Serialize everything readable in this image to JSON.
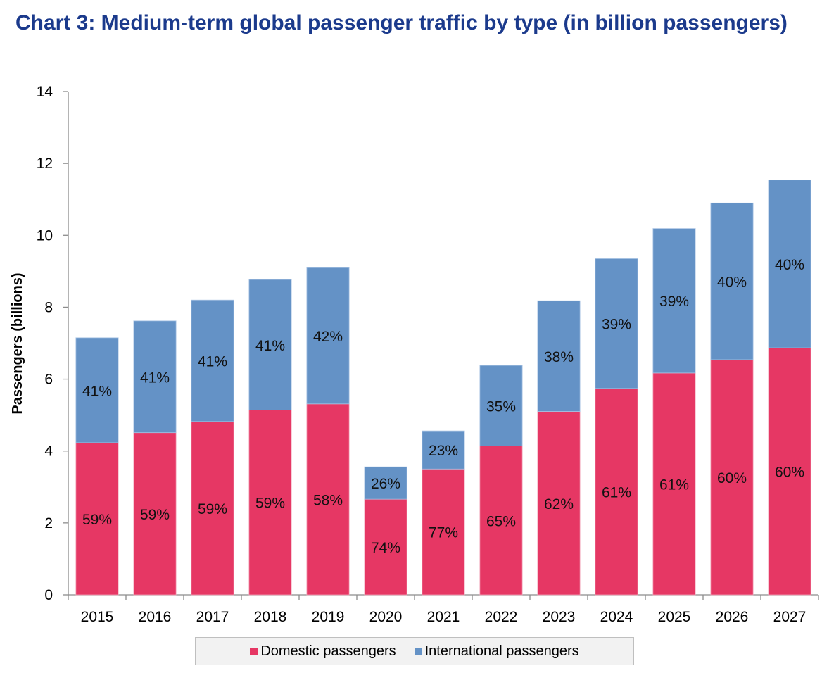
{
  "title": "Chart 3: Medium-term global passenger traffic by type (in billion passengers)",
  "colors": {
    "title": "#1B3A8C",
    "domestic": "#E63764",
    "international": "#6492C6",
    "axis": "#8C8C8C"
  },
  "chart_data": {
    "type": "bar",
    "stacked": true,
    "title": "Chart 3: Medium-term global passenger traffic by type (in billion passengers)",
    "xlabel": "",
    "ylabel": "Passengers (billions)",
    "ylim": [
      0,
      14
    ],
    "yticks": [
      0,
      2,
      4,
      6,
      8,
      10,
      12,
      14
    ],
    "grid": false,
    "legend_position": "bottom-center",
    "categories": [
      "2015",
      "2016",
      "2017",
      "2018",
      "2019",
      "2020",
      "2021",
      "2022",
      "2023",
      "2024",
      "2025",
      "2026",
      "2027"
    ],
    "series": [
      {
        "name": "Domestic passengers",
        "color": "#E63764",
        "values": [
          4.23,
          4.51,
          4.82,
          5.14,
          5.31,
          2.66,
          3.5,
          4.14,
          5.1,
          5.74,
          6.17,
          6.54,
          6.87
        ],
        "labels": [
          "59%",
          "59%",
          "59%",
          "59%",
          "58%",
          "74%",
          "77%",
          "65%",
          "62%",
          "61%",
          "61%",
          "60%",
          "60%"
        ]
      },
      {
        "name": "International passengers",
        "color": "#6492C6",
        "values": [
          2.92,
          3.11,
          3.38,
          3.63,
          3.79,
          0.9,
          1.06,
          2.24,
          3.08,
          3.61,
          4.02,
          4.36,
          4.67
        ],
        "labels": [
          "41%",
          "41%",
          "41%",
          "41%",
          "42%",
          "26%",
          "23%",
          "35%",
          "38%",
          "39%",
          "39%",
          "40%",
          "40%"
        ]
      }
    ],
    "totals": [
      7.15,
      7.62,
      8.2,
      8.77,
      9.1,
      3.56,
      4.56,
      6.38,
      8.18,
      9.35,
      10.19,
      10.9,
      11.54
    ]
  },
  "legend": {
    "items": [
      {
        "label": "Domestic passengers",
        "color": "#E63764"
      },
      {
        "label": "International passengers",
        "color": "#6492C6"
      }
    ]
  }
}
